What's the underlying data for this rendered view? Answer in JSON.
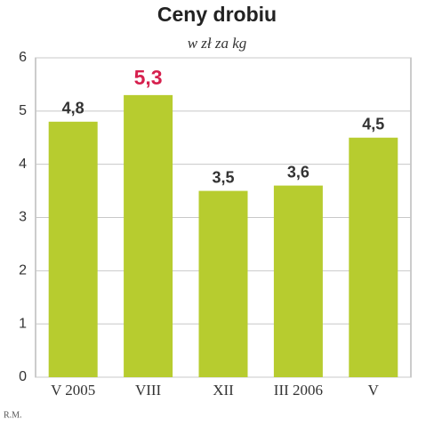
{
  "chart_data": {
    "type": "bar",
    "title": "Ceny drobiu",
    "subtitle": "w zł za kg",
    "categories": [
      "V 2005",
      "VIII",
      "XII",
      "III 2006",
      "V"
    ],
    "values": [
      4.8,
      5.3,
      3.5,
      3.6,
      4.5
    ],
    "value_labels": [
      "4,8",
      "5,3",
      "3,5",
      "3,6",
      "4,5"
    ],
    "value_label_colors": [
      "#333333",
      "#d6204e",
      "#333333",
      "#333333",
      "#333333"
    ],
    "color": "#b7cc2f",
    "ylim": [
      0,
      6
    ],
    "yticks": [
      0,
      1,
      2,
      3,
      4,
      5,
      6
    ],
    "grid": true,
    "source": "R.M."
  }
}
